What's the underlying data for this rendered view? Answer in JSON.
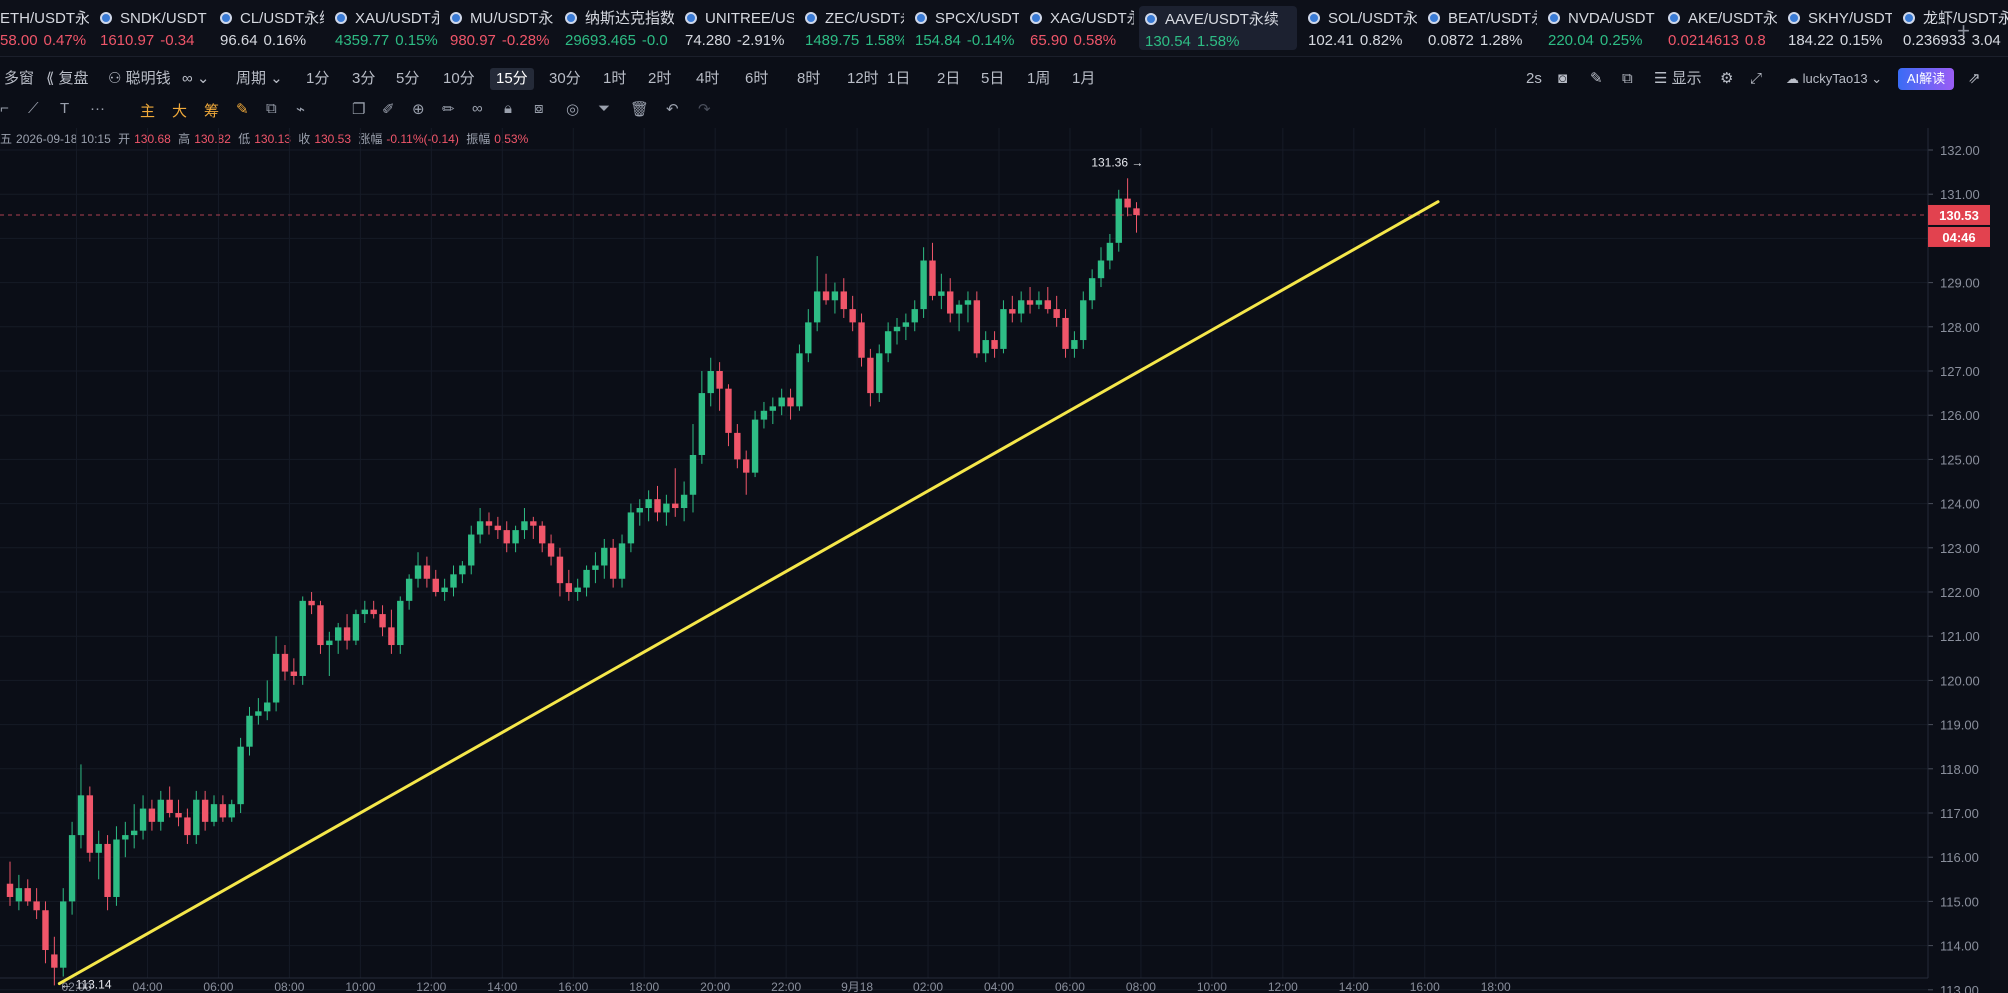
{
  "tickers": [
    {
      "symbol": "ETH/USDT永",
      "price": "58.00",
      "change": "0.47%",
      "dir": "down"
    },
    {
      "symbol": "SNDK/USDT",
      "price": "1610.97",
      "change": "-0.34",
      "dir": "down"
    },
    {
      "symbol": "CL/USDT永续",
      "price": "96.64",
      "change": "0.16%",
      "dir": "neutral"
    },
    {
      "symbol": "XAU/USDT永",
      "price": "4359.77",
      "change": "0.15%",
      "dir": "up"
    },
    {
      "symbol": "MU/USDT永",
      "price": "980.97",
      "change": "-0.28%",
      "dir": "down"
    },
    {
      "symbol": "纳斯达克指数...",
      "price": "29693.465",
      "change": "-0.0",
      "dir": "up"
    },
    {
      "symbol": "UNITREE/US",
      "price": "74.280",
      "change": "-2.91%",
      "dir": "neutral"
    },
    {
      "symbol": "ZEC/USDT永",
      "price": "1489.75",
      "change": "1.58%",
      "dir": "up"
    },
    {
      "symbol": "SPCX/USDT",
      "price": "154.84",
      "change": "-0.14%",
      "dir": "up"
    },
    {
      "symbol": "XAG/USDT永",
      "price": "65.90",
      "change": "0.58%",
      "dir": "down"
    },
    {
      "symbol": "AAVE/USDT永续",
      "price": "130.54",
      "change": "1.58%",
      "dir": "up",
      "active": true
    },
    {
      "symbol": "SOL/USDT永",
      "price": "102.41",
      "change": "0.82%",
      "dir": "neutral"
    },
    {
      "symbol": "BEAT/USDT永",
      "price": "0.0872",
      "change": "1.28%",
      "dir": "neutral"
    },
    {
      "symbol": "NVDA/USDT",
      "price": "220.04",
      "change": "0.25%",
      "dir": "up"
    },
    {
      "symbol": "AKE/USDT永",
      "price": "0.0214613",
      "change": "0.8",
      "dir": "down"
    },
    {
      "symbol": "SKHY/USDT",
      "price": "184.22",
      "change": "0.15%",
      "dir": "neutral"
    },
    {
      "symbol": "龙虾/USDT永",
      "price": "0.236933",
      "change": "3.04",
      "dir": "neutral"
    }
  ],
  "toolbar": {
    "multi_window": "多窗",
    "replay": "复盘",
    "smart_money": "聪明钱",
    "indicator_icon": "∞",
    "period_label": "周期",
    "periods": [
      "1分",
      "3分",
      "5分",
      "10分",
      "15分",
      "30分",
      "1时",
      "2时",
      "4时",
      "6时",
      "8时",
      "12时",
      "1日",
      "2日",
      "5日",
      "1周",
      "1月"
    ],
    "selected_period": "15分",
    "refresh": "2s",
    "display": "显示",
    "username": "luckyTao13",
    "ai_button": "AI解读"
  },
  "drawing_tools": {
    "main": "主",
    "big": "大",
    "chips": "筹"
  },
  "ohlc_info": {
    "prefix": "五",
    "datetime": "2026-09-18 10:15",
    "open_label": "开",
    "open": "130.68",
    "high_label": "高",
    "high": "130.82",
    "low_label": "低",
    "low": "130.13",
    "close_label": "收",
    "close": "130.53",
    "change_label": "涨幅",
    "change": "-0.11%(-0.14)",
    "amplitude_label": "振幅",
    "amplitude": "0.53%"
  },
  "chart_data": {
    "type": "candlestick",
    "symbol": "AAVE/USDT永续",
    "interval": "15分",
    "ylim": [
      112.7,
      132.4
    ],
    "y_ticks": [
      "113.00",
      "114.00",
      "115.00",
      "116.00",
      "117.00",
      "118.00",
      "119.00",
      "120.00",
      "121.00",
      "122.00",
      "123.00",
      "124.00",
      "125.00",
      "126.00",
      "127.00",
      "128.00",
      "129.00",
      "130.00",
      "131.00",
      "132.00"
    ],
    "x_ticks": [
      {
        "label": "02:00",
        "index": 8
      },
      {
        "label": "04:00",
        "index": 16
      },
      {
        "label": "06:00",
        "index": 24
      },
      {
        "label": "08:00",
        "index": 32
      },
      {
        "label": "10:00",
        "index": 40
      },
      {
        "label": "12:00",
        "index": 48
      },
      {
        "label": "14:00",
        "index": 56
      },
      {
        "label": "16:00",
        "index": 64
      },
      {
        "label": "18:00",
        "index": 72
      },
      {
        "label": "20:00",
        "index": 80
      },
      {
        "label": "22:00",
        "index": 88
      },
      {
        "label": "9月18",
        "index": 96
      },
      {
        "label": "02:00",
        "index": 104
      },
      {
        "label": "04:00",
        "index": 112
      },
      {
        "label": "06:00",
        "index": 120
      },
      {
        "label": "08:00",
        "index": 128
      },
      {
        "label": "10:00",
        "index": 136
      },
      {
        "label": "12:00",
        "index": 144
      },
      {
        "label": "14:00",
        "index": 152
      },
      {
        "label": "16:00",
        "index": 160
      },
      {
        "label": "18:00",
        "index": 168
      }
    ],
    "candles": [
      [
        115.4,
        115.9,
        114.9,
        115.1
      ],
      [
        115.0,
        115.6,
        114.8,
        115.3
      ],
      [
        115.3,
        115.5,
        114.9,
        115.0
      ],
      [
        115.0,
        115.3,
        114.6,
        114.8
      ],
      [
        114.8,
        115.0,
        113.6,
        113.9
      ],
      [
        113.8,
        114.2,
        113.1,
        113.5
      ],
      [
        113.5,
        115.3,
        113.3,
        115.0
      ],
      [
        115.0,
        116.8,
        114.7,
        116.5
      ],
      [
        116.5,
        118.1,
        116.2,
        117.4
      ],
      [
        117.4,
        117.6,
        115.9,
        116.1
      ],
      [
        116.1,
        116.6,
        115.5,
        116.3
      ],
      [
        116.3,
        116.5,
        114.8,
        115.1
      ],
      [
        115.1,
        116.7,
        114.9,
        116.4
      ],
      [
        116.4,
        116.8,
        116.0,
        116.5
      ],
      [
        116.5,
        117.2,
        116.2,
        116.6
      ],
      [
        116.6,
        117.4,
        116.4,
        117.1
      ],
      [
        117.1,
        117.3,
        116.6,
        116.8
      ],
      [
        116.8,
        117.5,
        116.6,
        117.3
      ],
      [
        117.3,
        117.6,
        116.9,
        117.0
      ],
      [
        117.0,
        117.3,
        116.7,
        116.9
      ],
      [
        116.9,
        117.1,
        116.3,
        116.5
      ],
      [
        116.5,
        117.5,
        116.3,
        117.3
      ],
      [
        117.3,
        117.5,
        116.6,
        116.8
      ],
      [
        116.8,
        117.4,
        116.7,
        117.2
      ],
      [
        117.2,
        117.4,
        116.8,
        116.9
      ],
      [
        116.9,
        117.3,
        116.8,
        117.2
      ],
      [
        117.2,
        118.7,
        117.0,
        118.5
      ],
      [
        118.5,
        119.4,
        118.3,
        119.2
      ],
      [
        119.2,
        119.6,
        119.0,
        119.3
      ],
      [
        119.3,
        120.0,
        119.1,
        119.5
      ],
      [
        119.5,
        121.0,
        119.3,
        120.6
      ],
      [
        120.6,
        120.8,
        120.0,
        120.2
      ],
      [
        120.2,
        120.5,
        119.9,
        120.1
      ],
      [
        120.1,
        121.9,
        119.9,
        121.8
      ],
      [
        121.8,
        122.0,
        121.5,
        121.7
      ],
      [
        121.7,
        121.8,
        120.6,
        120.8
      ],
      [
        120.8,
        121.1,
        120.1,
        120.9
      ],
      [
        120.9,
        121.3,
        120.6,
        121.2
      ],
      [
        121.2,
        121.5,
        120.7,
        120.9
      ],
      [
        120.9,
        121.6,
        120.8,
        121.5
      ],
      [
        121.5,
        121.8,
        121.3,
        121.6
      ],
      [
        121.6,
        121.8,
        121.4,
        121.5
      ],
      [
        121.5,
        121.7,
        121.0,
        121.2
      ],
      [
        121.2,
        121.6,
        120.6,
        120.8
      ],
      [
        120.8,
        121.9,
        120.6,
        121.8
      ],
      [
        121.8,
        122.4,
        121.6,
        122.3
      ],
      [
        122.3,
        122.9,
        122.1,
        122.6
      ],
      [
        122.6,
        122.8,
        122.1,
        122.3
      ],
      [
        122.3,
        122.5,
        121.9,
        122.0
      ],
      [
        122.0,
        122.3,
        121.8,
        122.1
      ],
      [
        122.1,
        122.6,
        121.9,
        122.4
      ],
      [
        122.4,
        122.7,
        122.2,
        122.6
      ],
      [
        122.6,
        123.5,
        122.4,
        123.3
      ],
      [
        123.3,
        123.9,
        123.1,
        123.6
      ],
      [
        123.6,
        123.8,
        123.3,
        123.5
      ],
      [
        123.5,
        123.7,
        123.2,
        123.4
      ],
      [
        123.4,
        123.6,
        122.9,
        123.1
      ],
      [
        123.1,
        123.5,
        122.9,
        123.4
      ],
      [
        123.4,
        123.9,
        123.2,
        123.6
      ],
      [
        123.6,
        123.7,
        123.2,
        123.5
      ],
      [
        123.5,
        123.6,
        122.9,
        123.1
      ],
      [
        123.1,
        123.3,
        122.6,
        122.8
      ],
      [
        122.8,
        123.0,
        121.9,
        122.2
      ],
      [
        122.2,
        122.5,
        121.8,
        122.0
      ],
      [
        122.0,
        122.3,
        121.8,
        122.1
      ],
      [
        122.1,
        122.6,
        121.9,
        122.5
      ],
      [
        122.5,
        122.9,
        122.2,
        122.6
      ],
      [
        122.6,
        123.2,
        122.3,
        123.0
      ],
      [
        123.0,
        123.2,
        122.1,
        122.3
      ],
      [
        122.3,
        123.3,
        122.1,
        123.1
      ],
      [
        123.1,
        124.0,
        122.9,
        123.8
      ],
      [
        123.8,
        124.1,
        123.5,
        123.9
      ],
      [
        123.9,
        124.3,
        123.6,
        124.1
      ],
      [
        124.1,
        124.4,
        123.6,
        123.8
      ],
      [
        123.8,
        124.2,
        123.5,
        124.0
      ],
      [
        124.0,
        124.8,
        123.7,
        123.9
      ],
      [
        123.9,
        124.5,
        123.6,
        124.2
      ],
      [
        124.2,
        125.8,
        123.8,
        125.1
      ],
      [
        125.1,
        127.0,
        124.9,
        126.5
      ],
      [
        126.5,
        127.3,
        126.2,
        127.0
      ],
      [
        127.0,
        127.2,
        126.1,
        126.6
      ],
      [
        126.6,
        126.7,
        125.3,
        125.6
      ],
      [
        125.6,
        125.8,
        124.8,
        125.0
      ],
      [
        125.0,
        125.2,
        124.2,
        124.7
      ],
      [
        124.7,
        126.1,
        124.6,
        125.9
      ],
      [
        125.9,
        126.3,
        125.7,
        126.1
      ],
      [
        126.1,
        126.4,
        125.8,
        126.2
      ],
      [
        126.2,
        126.6,
        126.0,
        126.4
      ],
      [
        126.4,
        126.6,
        125.9,
        126.2
      ],
      [
        126.2,
        127.6,
        126.1,
        127.4
      ],
      [
        127.4,
        128.4,
        127.2,
        128.1
      ],
      [
        128.1,
        129.6,
        127.9,
        128.8
      ],
      [
        128.8,
        129.2,
        128.5,
        128.6
      ],
      [
        128.6,
        129.0,
        128.3,
        128.8
      ],
      [
        128.8,
        129.1,
        128.2,
        128.4
      ],
      [
        128.4,
        128.7,
        127.9,
        128.1
      ],
      [
        128.1,
        128.3,
        127.1,
        127.3
      ],
      [
        127.3,
        127.5,
        126.2,
        126.5
      ],
      [
        126.5,
        127.6,
        126.3,
        127.4
      ],
      [
        127.4,
        128.1,
        127.2,
        127.9
      ],
      [
        127.9,
        128.2,
        127.6,
        128.0
      ],
      [
        128.0,
        128.3,
        127.7,
        128.1
      ],
      [
        128.1,
        128.6,
        127.9,
        128.4
      ],
      [
        128.4,
        129.8,
        128.2,
        129.5
      ],
      [
        129.5,
        129.9,
        128.6,
        128.7
      ],
      [
        128.7,
        129.2,
        128.4,
        128.8
      ],
      [
        128.8,
        129.1,
        128.1,
        128.3
      ],
      [
        128.3,
        128.6,
        127.9,
        128.5
      ],
      [
        128.5,
        128.8,
        128.1,
        128.6
      ],
      [
        128.6,
        128.8,
        127.3,
        127.4
      ],
      [
        127.4,
        127.9,
        127.2,
        127.7
      ],
      [
        127.7,
        127.9,
        127.3,
        127.5
      ],
      [
        127.5,
        128.6,
        127.4,
        128.4
      ],
      [
        128.4,
        128.7,
        128.1,
        128.3
      ],
      [
        128.3,
        128.8,
        128.1,
        128.6
      ],
      [
        128.6,
        128.9,
        128.3,
        128.5
      ],
      [
        128.5,
        128.8,
        128.4,
        128.6
      ],
      [
        128.6,
        128.9,
        128.3,
        128.4
      ],
      [
        128.4,
        128.7,
        128.0,
        128.2
      ],
      [
        128.2,
        128.4,
        127.3,
        127.5
      ],
      [
        127.5,
        127.9,
        127.3,
        127.7
      ],
      [
        127.7,
        128.8,
        127.5,
        128.6
      ],
      [
        128.6,
        129.3,
        128.4,
        129.1
      ],
      [
        129.1,
        129.8,
        128.9,
        129.5
      ],
      [
        129.5,
        130.1,
        129.3,
        129.9
      ],
      [
        129.9,
        131.1,
        129.7,
        130.9
      ],
      [
        130.9,
        131.36,
        130.5,
        130.7
      ],
      [
        130.68,
        130.82,
        130.13,
        130.53
      ]
    ],
    "last_price": "130.53",
    "countdown": "04:46",
    "high_marker": {
      "value": 131.36,
      "label": "131.36 →",
      "index": 128
    },
    "low_marker": {
      "value": 113.14,
      "label": "← 113.14",
      "index": 5
    },
    "trendline": {
      "start": {
        "index": 5,
        "price": 113.14
      },
      "end": {
        "index": 161,
        "price": 130.83
      },
      "color": "#f5e74a"
    },
    "colors": {
      "up": "#2ebd85",
      "down": "#f0566a",
      "grid": "#161b27",
      "background": "#0b0e17"
    }
  }
}
